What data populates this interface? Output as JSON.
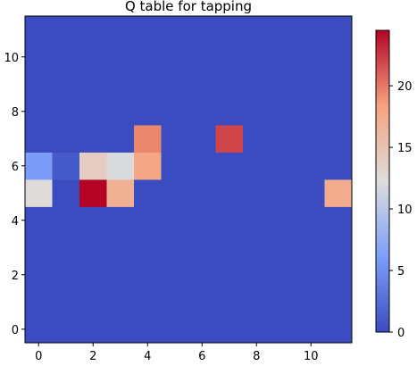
{
  "chart_data": {
    "type": "heatmap",
    "title": "Q table for tapping",
    "xlabel": "",
    "ylabel": "",
    "grid": false,
    "colormap": "coolwarm",
    "x_ticks": [
      0,
      2,
      4,
      6,
      8,
      10
    ],
    "y_ticks": [
      0,
      2,
      4,
      6,
      8,
      10
    ],
    "x_range": [
      -0.5,
      11.5
    ],
    "y_range": [
      -0.5,
      11.5
    ],
    "nx": 12,
    "ny": 12,
    "background_value": 0,
    "cells": [
      {
        "x": 0,
        "y": 6,
        "value": 6
      },
      {
        "x": 1,
        "y": 6,
        "value": 1
      },
      {
        "x": 2,
        "y": 6,
        "value": 14
      },
      {
        "x": 3,
        "y": 6,
        "value": 12
      },
      {
        "x": 4,
        "y": 6,
        "value": 18
      },
      {
        "x": 0,
        "y": 5,
        "value": 12.5
      },
      {
        "x": 2,
        "y": 5,
        "value": 24.5
      },
      {
        "x": 3,
        "y": 5,
        "value": 17
      },
      {
        "x": 11,
        "y": 5,
        "value": 17.5
      },
      {
        "x": 4,
        "y": 7,
        "value": 19.5
      },
      {
        "x": 7,
        "y": 7,
        "value": 22
      }
    ],
    "colorbar": {
      "min": 0,
      "max": 24.5,
      "ticks": [
        0,
        5,
        10,
        15,
        20
      ]
    }
  }
}
